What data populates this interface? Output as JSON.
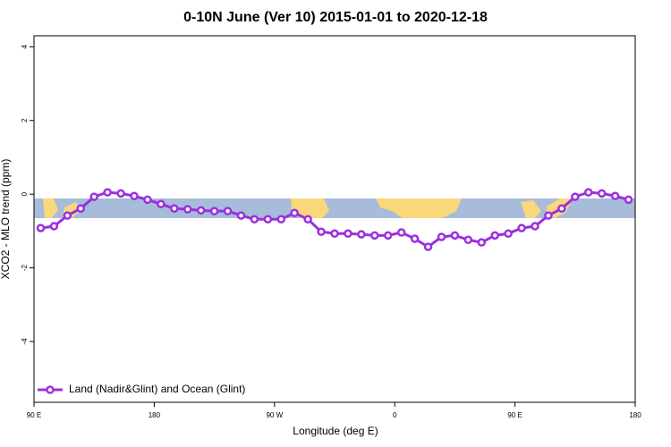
{
  "chart_data": {
    "type": "line",
    "title": "0-10N June (Ver 10)   2015-01-01 to 2020-12-18",
    "xlabel": "Longitude (deg E)",
    "ylabel": "XCO2 - MLO trend (ppm)",
    "x": [
      95,
      105,
      115,
      125,
      135,
      145,
      155,
      165,
      175,
      185,
      195,
      205,
      215,
      225,
      235,
      245,
      255,
      265,
      275,
      285,
      295,
      305,
      315,
      325,
      335,
      345,
      355,
      365,
      375,
      385,
      395,
      405,
      415,
      425,
      435,
      445,
      455,
      465,
      475,
      485,
      495,
      505,
      515,
      525,
      535
    ],
    "series": [
      {
        "name": "Land (Nadir&Glint) and Ocean (Glint)",
        "color": "#9b30e0",
        "values": [
          -0.92,
          -0.87,
          -0.58,
          -0.39,
          -0.07,
          0.05,
          0.02,
          -0.05,
          -0.15,
          -0.27,
          -0.39,
          -0.41,
          -0.44,
          -0.46,
          -0.46,
          -0.58,
          -0.68,
          -0.68,
          -0.68,
          -0.51,
          -0.68,
          -1.02,
          -1.07,
          -1.07,
          -1.09,
          -1.12,
          -1.12,
          -1.04,
          -1.21,
          -1.43,
          -1.16,
          -1.12,
          -1.24,
          -1.31,
          -1.12,
          -1.07,
          -0.92,
          -0.87,
          -0.58,
          -0.39,
          -0.07,
          0.05,
          0.02,
          -0.05,
          -0.15
        ]
      }
    ],
    "xlim": [
      90,
      540
    ],
    "xticks": [
      {
        "value": 90,
        "label": "90 E"
      },
      180,
      {
        "value": 270,
        "label": "90 W"
      },
      {
        "value": 360,
        "label": "0"
      },
      {
        "value": 450,
        "label": "90 E"
      },
      {
        "value": 540,
        "label": "180"
      }
    ],
    "ylim": [
      -5.65,
      4.3
    ],
    "yticks": [
      -4,
      -2,
      0,
      2,
      4
    ],
    "legend": "bottom-left"
  }
}
